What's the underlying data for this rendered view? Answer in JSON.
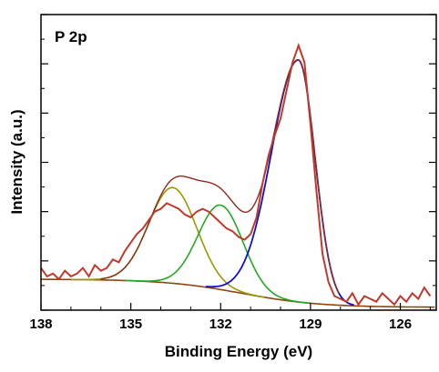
{
  "chart_data": {
    "type": "line",
    "title": "",
    "annotation": "P 2p",
    "xlabel": "Binding Energy (eV)",
    "ylabel": "Intensity (a.u.)",
    "xlim": [
      138,
      124.8
    ],
    "ylim": [
      0,
      1.05
    ],
    "x_reversed": true,
    "x_ticks": [
      138,
      135,
      132,
      129,
      126
    ],
    "x_tick_labels": [
      "138",
      "135",
      "132",
      "129",
      "126"
    ],
    "y_tick_labels_shown": false,
    "grid": false,
    "legend": "none",
    "components": {
      "background": {
        "color": "#8B4513",
        "start": 0.11,
        "end": 0.01,
        "midpoint": 131.3,
        "width": 1.3
      },
      "peak_low": {
        "color": "#1010CC",
        "center": 129.4,
        "amplitude": 0.86,
        "sigma_low_be": 0.55,
        "sigma_high_be": 0.9
      },
      "peak_mid": {
        "color": "#22AA22",
        "center": 132.0,
        "amplitude": 0.3,
        "sigma": 0.75
      },
      "peak_high": {
        "color": "#9A9A00",
        "center": 133.6,
        "amplitude": 0.34,
        "sigma": 0.8
      }
    },
    "series": [
      {
        "color": "#C0392B",
        "width": 2,
        "x": [
          138.0,
          137.8,
          137.6,
          137.4,
          137.2,
          137.0,
          136.8,
          136.6,
          136.4,
          136.2,
          136.0,
          135.8,
          135.6,
          135.4,
          135.2,
          135.0,
          134.8,
          134.6,
          134.4,
          134.2,
          134.0,
          133.8,
          133.6,
          133.4,
          133.2,
          133.0,
          132.8,
          132.6,
          132.4,
          132.2,
          132.0,
          131.8,
          131.6,
          131.4,
          131.2,
          131.0,
          130.8,
          130.6,
          130.4,
          130.2,
          130.0,
          129.8,
          129.6,
          129.4,
          129.2,
          129.0,
          128.8,
          128.6,
          128.4,
          128.2,
          128.0,
          127.8,
          127.6,
          127.4,
          127.2,
          127.0,
          126.8,
          126.6,
          126.4,
          126.2,
          126.0,
          125.8,
          125.6,
          125.4,
          125.2,
          125.0
        ],
        "y": [
          0.15,
          0.12,
          0.13,
          0.11,
          0.14,
          0.12,
          0.13,
          0.15,
          0.12,
          0.16,
          0.14,
          0.15,
          0.18,
          0.17,
          0.21,
          0.24,
          0.27,
          0.29,
          0.32,
          0.35,
          0.36,
          0.38,
          0.37,
          0.36,
          0.34,
          0.33,
          0.35,
          0.36,
          0.35,
          0.33,
          0.31,
          0.29,
          0.28,
          0.26,
          0.25,
          0.27,
          0.33,
          0.45,
          0.55,
          0.62,
          0.68,
          0.78,
          0.88,
          0.94,
          0.88,
          0.66,
          0.42,
          0.2,
          0.1,
          0.05,
          0.04,
          0.03,
          0.06,
          0.02,
          0.05,
          0.04,
          0.03,
          0.06,
          0.04,
          0.02,
          0.05,
          0.03,
          0.06,
          0.04,
          0.08,
          0.05
        ]
      }
    ]
  }
}
